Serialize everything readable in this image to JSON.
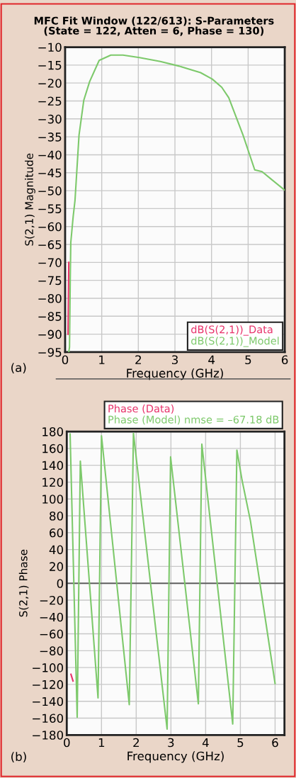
{
  "chart_data": [
    {
      "type": "line",
      "title": "MFC Fit Window (122/613): S-Parameters\n(State = 122, Atten = 6, Phase = 130)",
      "xlabel": "Frequency (GHz)",
      "ylabel": "S(2,1) Magnitude",
      "xlim": [
        0,
        6
      ],
      "xticks": [
        0,
        1,
        2,
        3,
        4,
        5,
        6
      ],
      "ylim": [
        -95,
        -10
      ],
      "yticks": [
        -95,
        -90,
        -85,
        -80,
        -75,
        -70,
        -65,
        -60,
        -55,
        -50,
        -45,
        -40,
        -35,
        -30,
        -25,
        -20,
        -15,
        -10
      ],
      "grid": true,
      "legend": "bottom right",
      "annotations": [
        "(a)"
      ],
      "series": [
        {
          "name": "dB(S(2,1))_Data",
          "color": "#e8336b",
          "x": [
            0.08,
            0.09,
            0.1
          ],
          "values": [
            -90,
            -80,
            -70
          ]
        },
        {
          "name": "dB(S(2,1))_Model",
          "color": "#7dc96b",
          "x": [
            0.1,
            0.12,
            0.14,
            0.155,
            0.22,
            0.27,
            0.38,
            0.51,
            0.67,
            0.93,
            1.25,
            1.58,
            2.03,
            2.6,
            3.12,
            3.7,
            4.02,
            4.28,
            4.47,
            4.86,
            5.18,
            5.38,
            5.63,
            5.99
          ],
          "values": [
            -95,
            -93.6,
            -74.8,
            -64.4,
            -57.2,
            -52.7,
            -34.5,
            -24.8,
            -19.6,
            -13.7,
            -12.2,
            -12.2,
            -12.9,
            -14,
            -15.3,
            -17.1,
            -18.9,
            -21.2,
            -24.1,
            -34.5,
            -44.2,
            -44.7,
            -46.8,
            -49.8
          ]
        }
      ]
    },
    {
      "type": "line",
      "xlabel": "Frequency (GHz)",
      "ylabel": "S(2,1) Phase",
      "xlim": [
        0,
        6.27
      ],
      "xticks": [
        0,
        1,
        2,
        3,
        4,
        5,
        6
      ],
      "ylim": [
        -180,
        180
      ],
      "yticks": [
        -180,
        -160,
        -140,
        -120,
        -100,
        -80,
        -60,
        -40,
        -20,
        0,
        20,
        40,
        60,
        80,
        100,
        120,
        140,
        160,
        180
      ],
      "grid": true,
      "legend": "top right",
      "annotations": [
        "(b)"
      ],
      "ref_lines": [
        {
          "axis": "y",
          "value": 0,
          "color": "#606060"
        }
      ],
      "series": [
        {
          "name": "Phase (Data)",
          "color": "#e8336b",
          "x": [
            0.12,
            0.18
          ],
          "values": [
            -108,
            -116
          ]
        },
        {
          "name": "Phase (Model) nmse = –67.18 dB",
          "color": "#7dc96b",
          "x": [
            0.096,
            0.3,
            0.39,
            0.9,
            1.0,
            1.8,
            1.92,
            2.89,
            2.99,
            3.79,
            3.89,
            4.78,
            4.9,
            5.05,
            5.29,
            5.56,
            6.0
          ],
          "values": [
            177,
            -159,
            145,
            -136,
            175,
            -144,
            178,
            -173,
            150,
            -143,
            165,
            -167,
            158,
            122,
            74,
            1,
            -119
          ]
        }
      ]
    }
  ]
}
